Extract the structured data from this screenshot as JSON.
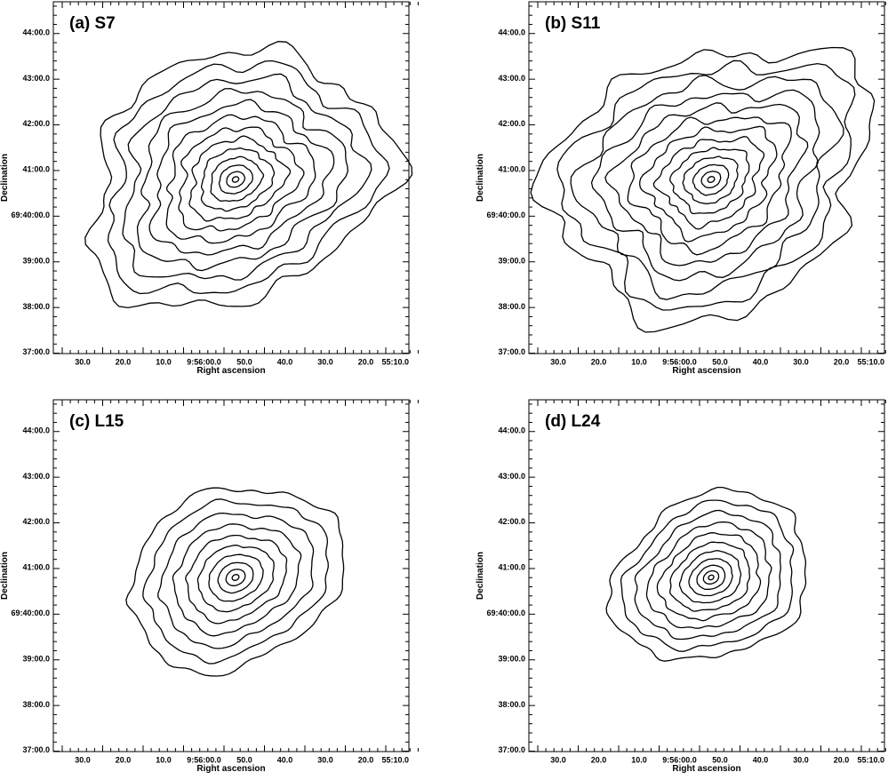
{
  "panels": [
    {
      "label": "(a) S7",
      "x_axis_label": "Right ascension",
      "y_axis_label": "Declination",
      "xticks": [
        "30.0",
        "20.0",
        "10.0",
        "9:56:00.0",
        "50.0",
        "40.0",
        "30.0",
        "20.0",
        "55:10.0"
      ],
      "yticks": [
        "44:00.0",
        "43:00.0",
        "42:00.0",
        "41:00.0",
        "69:40:00.0",
        "39:00.0",
        "38:00.0",
        "37:00.0"
      ]
    },
    {
      "label": "(b) S11",
      "x_axis_label": "Right ascension",
      "y_axis_label": "Declination",
      "xticks": [
        "30.0",
        "20.0",
        "10.0",
        "9:56:00.0",
        "50.0",
        "40.0",
        "30.0",
        "20.0",
        "55:10.0"
      ],
      "yticks": [
        "44:00.0",
        "43:00.0",
        "42:00.0",
        "41:00.0",
        "69:40:00.0",
        "39:00.0",
        "38:00.0",
        "37:00.0"
      ]
    },
    {
      "label": "(c) L15",
      "x_axis_label": "Right ascension",
      "y_axis_label": "Declination",
      "xticks": [
        "30.0",
        "20.0",
        "10.0",
        "9:56:00.0",
        "50.0",
        "40.0",
        "30.0",
        "20.0",
        "55:10.0"
      ],
      "yticks": [
        "44:00.0",
        "43:00.0",
        "42:00.0",
        "41:00.0",
        "69:40:00.0",
        "39:00.0",
        "38:00.0",
        "37:00.0"
      ]
    },
    {
      "label": "(d) L24",
      "x_axis_label": "Right ascension",
      "y_axis_label": "Declination",
      "xticks": [
        "30.0",
        "20.0",
        "10.0",
        "9:56:00.0",
        "50.0",
        "40.0",
        "30.0",
        "20.0",
        "55:10.0"
      ],
      "yticks": [
        "44:00.0",
        "43:00.0",
        "42:00.0",
        "41:00.0",
        "69:40:00.0",
        "39:00.0",
        "38:00.0",
        "37:00.0"
      ]
    }
  ]
}
